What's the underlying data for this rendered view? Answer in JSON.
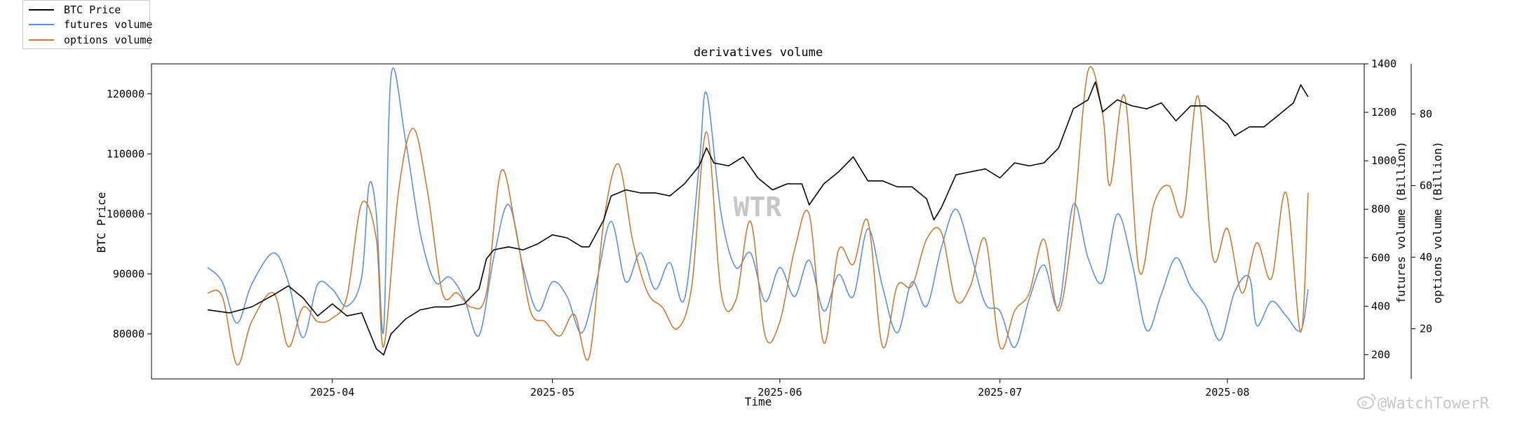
{
  "legend": [
    {
      "label": "BTC Price",
      "color": "#000000"
    },
    {
      "label": "futures volume",
      "color": "#5b8fe0"
    },
    {
      "label": "options volume",
      "color": "#c87b35"
    }
  ],
  "watermark_center": "WTR",
  "watermark_corner": "@WatchTowerR",
  "chart_data": {
    "type": "line",
    "title": "derivatives volume",
    "xlabel": "Time",
    "x_ticks": [
      "2025-04",
      "2025-05",
      "2025-06",
      "2025-07",
      "2025-08"
    ],
    "x_range": [
      "2025-03-15",
      "2025-08-12"
    ],
    "grid": false,
    "legend_position": "top-left, outside plot",
    "y_axes": [
      {
        "side": "left",
        "label": "BTC Price",
        "ylim": [
          72500,
          125000
        ],
        "ticks": [
          80000,
          90000,
          100000,
          110000,
          120000
        ]
      },
      {
        "side": "right",
        "label": "futures volume (Billion)",
        "ylim": [
          100,
          1400
        ],
        "ticks": [
          200,
          400,
          600,
          800,
          1000,
          1200,
          1400
        ]
      },
      {
        "side": "right-outer",
        "label": "options volume (Billion)",
        "ylim": [
          6,
          94
        ],
        "ticks": [
          20,
          40,
          60,
          80
        ]
      }
    ],
    "series": [
      {
        "name": "BTC Price",
        "axis": "left",
        "color": "#000000",
        "points": [
          [
            "2025-03-15",
            84000
          ],
          [
            "2025-03-18",
            83500
          ],
          [
            "2025-03-21",
            84500
          ],
          [
            "2025-03-24",
            86500
          ],
          [
            "2025-03-26",
            88000
          ],
          [
            "2025-03-28",
            86000
          ],
          [
            "2025-03-30",
            83000
          ],
          [
            "2025-04-01",
            85000
          ],
          [
            "2025-04-03",
            83000
          ],
          [
            "2025-04-05",
            83500
          ],
          [
            "2025-04-07",
            77500
          ],
          [
            "2025-04-08",
            76500
          ],
          [
            "2025-04-09",
            80000
          ],
          [
            "2025-04-11",
            82500
          ],
          [
            "2025-04-13",
            84000
          ],
          [
            "2025-04-15",
            84500
          ],
          [
            "2025-04-17",
            84500
          ],
          [
            "2025-04-19",
            85000
          ],
          [
            "2025-04-21",
            87500
          ],
          [
            "2025-04-22",
            92500
          ],
          [
            "2025-04-23",
            94000
          ],
          [
            "2025-04-25",
            94500
          ],
          [
            "2025-04-27",
            94000
          ],
          [
            "2025-04-29",
            95000
          ],
          [
            "2025-05-01",
            96500
          ],
          [
            "2025-05-03",
            96000
          ],
          [
            "2025-05-05",
            94500
          ],
          [
            "2025-05-06",
            94500
          ],
          [
            "2025-05-08",
            99000
          ],
          [
            "2025-05-09",
            103000
          ],
          [
            "2025-05-11",
            104000
          ],
          [
            "2025-05-13",
            103500
          ],
          [
            "2025-05-15",
            103500
          ],
          [
            "2025-05-17",
            103000
          ],
          [
            "2025-05-19",
            105000
          ],
          [
            "2025-05-21",
            108000
          ],
          [
            "2025-05-22",
            111000
          ],
          [
            "2025-05-23",
            108500
          ],
          [
            "2025-05-25",
            108000
          ],
          [
            "2025-05-27",
            109500
          ],
          [
            "2025-05-29",
            106000
          ],
          [
            "2025-05-31",
            104000
          ],
          [
            "2025-06-02",
            105000
          ],
          [
            "2025-06-04",
            105000
          ],
          [
            "2025-06-05",
            101500
          ],
          [
            "2025-06-07",
            105000
          ],
          [
            "2025-06-09",
            107000
          ],
          [
            "2025-06-11",
            109500
          ],
          [
            "2025-06-13",
            105500
          ],
          [
            "2025-06-15",
            105500
          ],
          [
            "2025-06-17",
            104500
          ],
          [
            "2025-06-19",
            104500
          ],
          [
            "2025-06-21",
            102500
          ],
          [
            "2025-06-22",
            99000
          ],
          [
            "2025-06-23",
            101000
          ],
          [
            "2025-06-25",
            106500
          ],
          [
            "2025-06-27",
            107000
          ],
          [
            "2025-06-29",
            107500
          ],
          [
            "2025-07-01",
            106000
          ],
          [
            "2025-07-03",
            108500
          ],
          [
            "2025-07-05",
            108000
          ],
          [
            "2025-07-07",
            108500
          ],
          [
            "2025-07-09",
            111000
          ],
          [
            "2025-07-11",
            117500
          ],
          [
            "2025-07-13",
            119000
          ],
          [
            "2025-07-14",
            122000
          ],
          [
            "2025-07-15",
            117000
          ],
          [
            "2025-07-17",
            119000
          ],
          [
            "2025-07-19",
            118000
          ],
          [
            "2025-07-21",
            117500
          ],
          [
            "2025-07-23",
            118500
          ],
          [
            "2025-07-25",
            115500
          ],
          [
            "2025-07-27",
            118000
          ],
          [
            "2025-07-29",
            118000
          ],
          [
            "2025-08-01",
            115000
          ],
          [
            "2025-08-02",
            113000
          ],
          [
            "2025-08-04",
            114500
          ],
          [
            "2025-08-06",
            114500
          ],
          [
            "2025-08-08",
            116500
          ],
          [
            "2025-08-10",
            118500
          ],
          [
            "2025-08-11",
            121500
          ],
          [
            "2025-08-12",
            119500
          ]
        ]
      },
      {
        "name": "futures volume",
        "axis": "right",
        "color": "#5b8fe0",
        "points": [
          [
            "2025-03-15",
            560
          ],
          [
            "2025-03-17",
            500
          ],
          [
            "2025-03-19",
            330
          ],
          [
            "2025-03-21",
            490
          ],
          [
            "2025-03-24",
            620
          ],
          [
            "2025-03-26",
            500
          ],
          [
            "2025-03-28",
            270
          ],
          [
            "2025-03-30",
            490
          ],
          [
            "2025-04-01",
            470
          ],
          [
            "2025-04-03",
            400
          ],
          [
            "2025-04-05",
            520
          ],
          [
            "2025-04-06",
            900
          ],
          [
            "2025-04-07",
            780
          ],
          [
            "2025-04-08",
            300
          ],
          [
            "2025-04-09",
            1350
          ],
          [
            "2025-04-11",
            1080
          ],
          [
            "2025-04-13",
            700
          ],
          [
            "2025-04-15",
            500
          ],
          [
            "2025-04-17",
            520
          ],
          [
            "2025-04-19",
            430
          ],
          [
            "2025-04-21",
            280
          ],
          [
            "2025-04-23",
            600
          ],
          [
            "2025-04-25",
            820
          ],
          [
            "2025-04-27",
            560
          ],
          [
            "2025-04-29",
            380
          ],
          [
            "2025-05-01",
            500
          ],
          [
            "2025-05-03",
            440
          ],
          [
            "2025-05-05",
            290
          ],
          [
            "2025-05-07",
            500
          ],
          [
            "2025-05-09",
            750
          ],
          [
            "2025-05-11",
            500
          ],
          [
            "2025-05-13",
            620
          ],
          [
            "2025-05-15",
            470
          ],
          [
            "2025-05-17",
            580
          ],
          [
            "2025-05-19",
            430
          ],
          [
            "2025-05-21",
            980
          ],
          [
            "2025-05-22",
            1280
          ],
          [
            "2025-05-24",
            780
          ],
          [
            "2025-05-26",
            560
          ],
          [
            "2025-05-28",
            620
          ],
          [
            "2025-05-30",
            420
          ],
          [
            "2025-06-01",
            560
          ],
          [
            "2025-06-03",
            440
          ],
          [
            "2025-06-05",
            590
          ],
          [
            "2025-06-07",
            380
          ],
          [
            "2025-06-09",
            530
          ],
          [
            "2025-06-11",
            440
          ],
          [
            "2025-06-13",
            720
          ],
          [
            "2025-06-15",
            480
          ],
          [
            "2025-06-17",
            290
          ],
          [
            "2025-06-19",
            500
          ],
          [
            "2025-06-21",
            400
          ],
          [
            "2025-06-23",
            640
          ],
          [
            "2025-06-25",
            800
          ],
          [
            "2025-06-27",
            620
          ],
          [
            "2025-06-29",
            410
          ],
          [
            "2025-07-01",
            380
          ],
          [
            "2025-07-03",
            230
          ],
          [
            "2025-07-05",
            430
          ],
          [
            "2025-07-07",
            570
          ],
          [
            "2025-07-09",
            400
          ],
          [
            "2025-07-11",
            820
          ],
          [
            "2025-07-13",
            600
          ],
          [
            "2025-07-15",
            500
          ],
          [
            "2025-07-17",
            780
          ],
          [
            "2025-07-19",
            580
          ],
          [
            "2025-07-21",
            300
          ],
          [
            "2025-07-23",
            450
          ],
          [
            "2025-07-25",
            600
          ],
          [
            "2025-07-27",
            480
          ],
          [
            "2025-07-29",
            400
          ],
          [
            "2025-07-31",
            260
          ],
          [
            "2025-08-02",
            460
          ],
          [
            "2025-08-04",
            520
          ],
          [
            "2025-08-05",
            320
          ],
          [
            "2025-08-07",
            420
          ],
          [
            "2025-08-09",
            360
          ],
          [
            "2025-08-11",
            300
          ],
          [
            "2025-08-12",
            470
          ]
        ]
      },
      {
        "name": "options volume",
        "axis": "right-outer",
        "color": "#c87b35",
        "points": [
          [
            "2025-03-15",
            30
          ],
          [
            "2025-03-17",
            29
          ],
          [
            "2025-03-19",
            10
          ],
          [
            "2025-03-21",
            22
          ],
          [
            "2025-03-24",
            30
          ],
          [
            "2025-03-26",
            15
          ],
          [
            "2025-03-28",
            26
          ],
          [
            "2025-03-30",
            22
          ],
          [
            "2025-04-01",
            23
          ],
          [
            "2025-04-03",
            29
          ],
          [
            "2025-04-05",
            55
          ],
          [
            "2025-04-07",
            45
          ],
          [
            "2025-04-08",
            15
          ],
          [
            "2025-04-10",
            58
          ],
          [
            "2025-04-12",
            76
          ],
          [
            "2025-04-14",
            58
          ],
          [
            "2025-04-16",
            30
          ],
          [
            "2025-04-18",
            30
          ],
          [
            "2025-04-20",
            26
          ],
          [
            "2025-04-22",
            30
          ],
          [
            "2025-04-24",
            64
          ],
          [
            "2025-04-26",
            48
          ],
          [
            "2025-04-28",
            25
          ],
          [
            "2025-04-30",
            22
          ],
          [
            "2025-05-02",
            18
          ],
          [
            "2025-05-04",
            24
          ],
          [
            "2025-05-06",
            12
          ],
          [
            "2025-05-08",
            50
          ],
          [
            "2025-05-10",
            66
          ],
          [
            "2025-05-12",
            44
          ],
          [
            "2025-05-14",
            30
          ],
          [
            "2025-05-16",
            26
          ],
          [
            "2025-05-18",
            20
          ],
          [
            "2025-05-20",
            32
          ],
          [
            "2025-05-22",
            75
          ],
          [
            "2025-05-24",
            30
          ],
          [
            "2025-05-26",
            28
          ],
          [
            "2025-05-28",
            50
          ],
          [
            "2025-05-30",
            18
          ],
          [
            "2025-06-01",
            22
          ],
          [
            "2025-06-03",
            42
          ],
          [
            "2025-06-05",
            52
          ],
          [
            "2025-06-07",
            16
          ],
          [
            "2025-06-09",
            42
          ],
          [
            "2025-06-11",
            38
          ],
          [
            "2025-06-13",
            50
          ],
          [
            "2025-06-15",
            15
          ],
          [
            "2025-06-17",
            32
          ],
          [
            "2025-06-19",
            32
          ],
          [
            "2025-06-21",
            45
          ],
          [
            "2025-06-23",
            47
          ],
          [
            "2025-06-25",
            28
          ],
          [
            "2025-06-27",
            32
          ],
          [
            "2025-06-29",
            45
          ],
          [
            "2025-07-01",
            15
          ],
          [
            "2025-07-03",
            25
          ],
          [
            "2025-07-05",
            30
          ],
          [
            "2025-07-07",
            45
          ],
          [
            "2025-07-09",
            25
          ],
          [
            "2025-07-11",
            50
          ],
          [
            "2025-07-13",
            92
          ],
          [
            "2025-07-15",
            80
          ],
          [
            "2025-07-16",
            60
          ],
          [
            "2025-07-18",
            85
          ],
          [
            "2025-07-20",
            36
          ],
          [
            "2025-07-22",
            55
          ],
          [
            "2025-07-24",
            60
          ],
          [
            "2025-07-26",
            52
          ],
          [
            "2025-07-28",
            85
          ],
          [
            "2025-07-30",
            40
          ],
          [
            "2025-08-01",
            48
          ],
          [
            "2025-08-03",
            30
          ],
          [
            "2025-08-05",
            44
          ],
          [
            "2025-08-07",
            34
          ],
          [
            "2025-08-09",
            58
          ],
          [
            "2025-08-11",
            19
          ],
          [
            "2025-08-12",
            58
          ]
        ]
      }
    ]
  }
}
